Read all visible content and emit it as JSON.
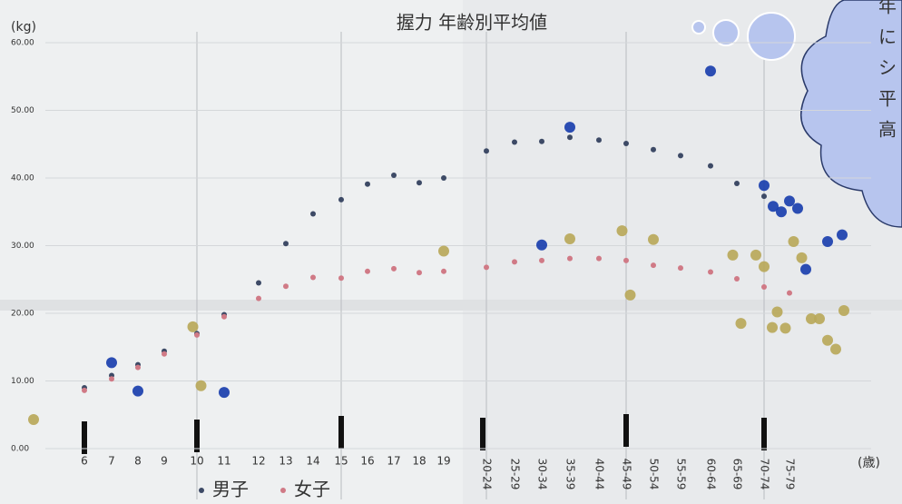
{
  "chart_data": {
    "type": "scatter",
    "title": "握力 年齢別平均値",
    "y_label": "(kg)",
    "x_label": "(歳)",
    "categories": [
      null,
      "6",
      "7",
      "8",
      "9",
      "10",
      "11",
      "12",
      "13",
      "14",
      "15",
      "16",
      "17",
      "18",
      "19",
      "20-24",
      "25-29",
      "30-34",
      "35-39",
      "40-44",
      "45-49",
      "50-54",
      "55-59",
      "60-64",
      "65-69",
      "70-74",
      "75-79",
      null,
      null
    ],
    "ylim": [
      0,
      60
    ],
    "yticks": [
      {
        "value": 0,
        "label": "0.00"
      },
      {
        "value": 10,
        "label": "10.00"
      },
      {
        "value": 20,
        "label": "20.00"
      },
      {
        "value": 30,
        "label": "30.00"
      },
      {
        "value": 40,
        "label": "40.00"
      },
      {
        "value": 50,
        "label": "50.00"
      },
      {
        "value": 60,
        "label": "60.00"
      }
    ],
    "series": [
      {
        "name": "男子",
        "color": "#3d4a66",
        "values": [
          null,
          9.0,
          10.8,
          12.4,
          14.4,
          17.0,
          19.8,
          24.5,
          30.3,
          34.7,
          36.8,
          39.1,
          40.4,
          39.3,
          40.0,
          44.0,
          45.3,
          45.4,
          46.0,
          45.6,
          45.1,
          44.2,
          43.3,
          41.8,
          39.2,
          37.3,
          null,
          null,
          null
        ]
      },
      {
        "name": "女子",
        "color": "#d07a86",
        "values": [
          null,
          8.6,
          10.3,
          12.0,
          14.0,
          16.8,
          19.5,
          22.2,
          24.0,
          25.3,
          25.2,
          26.2,
          26.6,
          26.0,
          26.2,
          26.8,
          27.6,
          27.8,
          28.1,
          28.1,
          27.8,
          27.1,
          26.7,
          26.1,
          25.1,
          23.9,
          23.0,
          null,
          null
        ]
      }
    ],
    "stickers": [
      {
        "color": "#1a3fae",
        "x": [
          2,
          3,
          6,
          17,
          18,
          23,
          25,
          26,
          26,
          26,
          26,
          26,
          27,
          28
        ],
        "values": [
          12.7,
          8.5,
          8.3,
          30.1,
          47.5,
          55.8,
          38.9,
          35.8,
          35.0,
          36.6,
          35.5,
          26.5,
          30.6,
          31.6
        ]
      },
      {
        "color": "#b9a85a",
        "x": [
          0,
          5,
          5,
          14,
          18,
          20,
          20,
          21,
          24,
          24,
          25,
          25,
          25,
          26,
          26,
          26,
          26,
          27,
          27,
          27,
          27,
          27
        ],
        "values": [
          4.3,
          18.0,
          9.3,
          29.2,
          31.0,
          32.2,
          22.7,
          30.9,
          28.6,
          18.5,
          28.6,
          26.9,
          17.9,
          20.2,
          17.8,
          30.6,
          28.2,
          19.2,
          19.2,
          16.0,
          14.7,
          20.4
        ]
      }
    ],
    "annotation": [
      "年",
      "に",
      "シ",
      "平",
      "高"
    ]
  }
}
